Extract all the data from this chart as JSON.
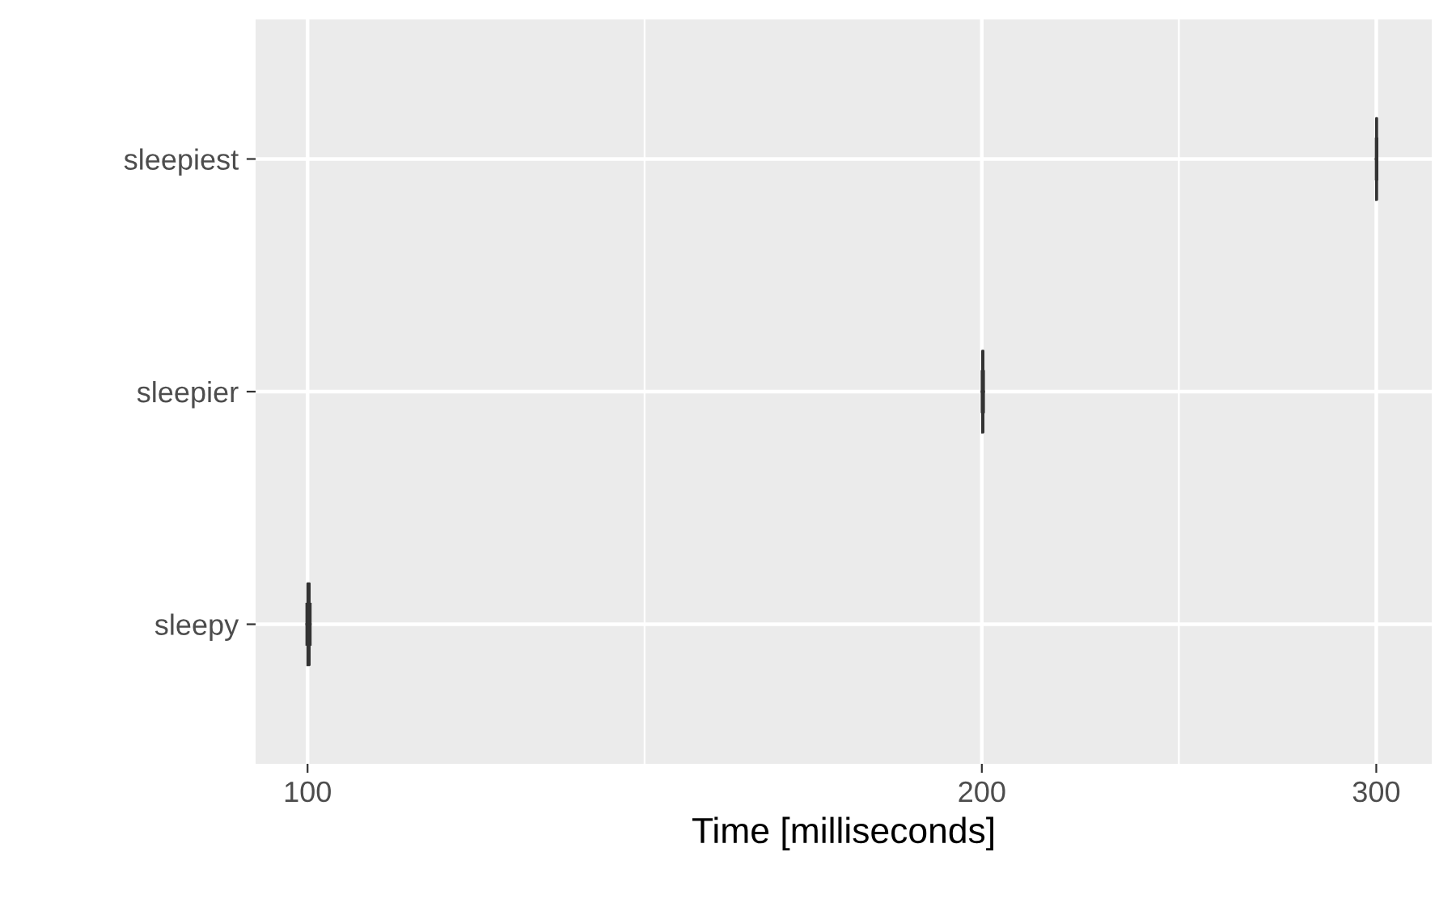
{
  "chart_data": {
    "type": "box",
    "orientation": "horizontal",
    "xlabel": "Time [milliseconds]",
    "categories": [
      "sleepiest",
      "sleepier",
      "sleepy"
    ],
    "boxes": [
      {
        "low": 299.9,
        "q1": 300.0,
        "median": 300.1,
        "q3": 300.2,
        "high": 300.3
      },
      {
        "low": 200.0,
        "q1": 200.1,
        "median": 200.2,
        "q3": 200.3,
        "high": 200.4
      },
      {
        "low": 99.9,
        "q1": 100.0,
        "median": 100.1,
        "q3": 100.2,
        "high": 100.3
      }
    ],
    "log": "x",
    "xlim": [
      94.8,
      317.6
    ],
    "xticks": [
      100,
      {
        "value": 141.4,
        "label": null
      },
      200,
      {
        "value": 244.9,
        "label": null
      },
      300
    ],
    "grid": true,
    "color": "#333333"
  }
}
